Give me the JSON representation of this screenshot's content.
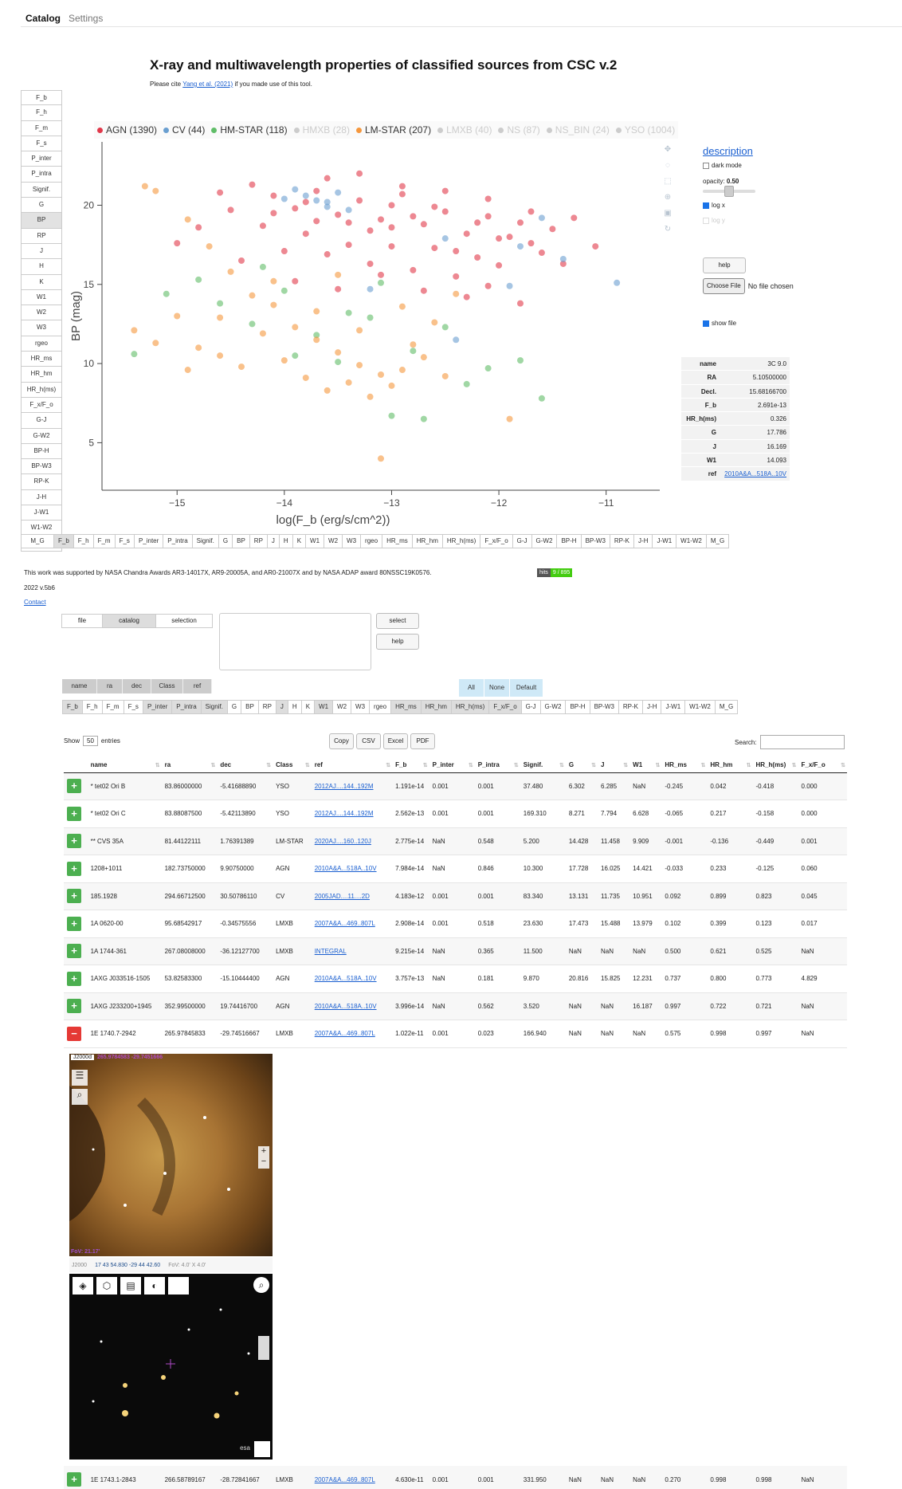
{
  "nav": {
    "tab_catalog": "Catalog",
    "tab_settings": "Settings"
  },
  "page": {
    "title": "X-ray and multiwavelength properties of classified sources from CSC v.2",
    "cite_pre": "Please cite ",
    "cite_link": "Yang et al. (2021)",
    "cite_post": " if you made use of this tool."
  },
  "y_buttons": [
    "F_b",
    "F_h",
    "F_m",
    "F_s",
    "P_inter",
    "P_intra",
    "Signif.",
    "G",
    "BP",
    "RP",
    "J",
    "H",
    "K",
    "W1",
    "W2",
    "W3",
    "rgeo",
    "HR_ms",
    "HR_hm",
    "HR_h(ms)",
    "F_x/F_o",
    "G-J",
    "G-W2",
    "BP-H",
    "BP-W3",
    "RP-K",
    "J-H",
    "J-W1",
    "W1-W2",
    "M_G"
  ],
  "x_buttons": [
    "F_b",
    "F_h",
    "F_m",
    "F_s",
    "P_inter",
    "P_intra",
    "Signif.",
    "G",
    "BP",
    "RP",
    "J",
    "H",
    "K",
    "W1",
    "W2",
    "W3",
    "rgeo",
    "HR_ms",
    "HR_hm",
    "HR_h(ms)",
    "F_x/F_o",
    "G-J",
    "G-W2",
    "BP-H",
    "BP-W3",
    "RP-K",
    "J-H",
    "J-W1",
    "W1-W2",
    "M_G"
  ],
  "legend": [
    {
      "label": "AGN (1390)",
      "color": "#e1384a",
      "on": true
    },
    {
      "label": "CV (44)",
      "color": "#6a9fd0",
      "on": true
    },
    {
      "label": "HM-STAR (118)",
      "color": "#60bd68",
      "on": true
    },
    {
      "label": "HMXB (28)",
      "color": "#cccccc",
      "on": false
    },
    {
      "label": "LM-STAR (207)",
      "color": "#f5973d",
      "on": true
    },
    {
      "label": "LMXB (40)",
      "color": "#cccccc",
      "on": false
    },
    {
      "label": "NS (87)",
      "color": "#cccccc",
      "on": false
    },
    {
      "label": "NS_BIN (24)",
      "color": "#cccccc",
      "on": false
    },
    {
      "label": "YSO (1004)",
      "color": "#cccccc",
      "on": false
    }
  ],
  "chart_data": {
    "type": "scatter",
    "xlabel": "log(F_b (erg/s/cm^2))",
    "ylabel": "BP (mag)",
    "xlim": [
      -15.7,
      -10.5
    ],
    "ylim": [
      2,
      24
    ],
    "xticks": [
      -15,
      -14,
      -13,
      -12,
      -11
    ],
    "yticks": [
      5,
      10,
      15,
      20
    ],
    "series": [
      {
        "name": "AGN",
        "color": "#e1384a",
        "points": [
          [
            -14.3,
            21.3
          ],
          [
            -14.1,
            20.6
          ],
          [
            -13.9,
            19.8
          ],
          [
            -13.7,
            20.9
          ],
          [
            -13.5,
            19.4
          ],
          [
            -13.3,
            20.3
          ],
          [
            -13.1,
            19.1
          ],
          [
            -12.9,
            20.7
          ],
          [
            -12.7,
            18.8
          ],
          [
            -12.5,
            19.6
          ],
          [
            -12.3,
            18.2
          ],
          [
            -12.1,
            19.3
          ],
          [
            -11.9,
            18.0
          ],
          [
            -11.7,
            17.6
          ],
          [
            -11.5,
            18.5
          ],
          [
            -13.8,
            18.2
          ],
          [
            -13.4,
            17.5
          ],
          [
            -13.0,
            18.6
          ],
          [
            -12.6,
            17.3
          ],
          [
            -12.2,
            16.7
          ],
          [
            -14.5,
            19.7
          ],
          [
            -14.2,
            18.7
          ],
          [
            -13.6,
            16.9
          ],
          [
            -13.2,
            16.3
          ],
          [
            -12.8,
            15.9
          ],
          [
            -12.4,
            15.5
          ],
          [
            -12.0,
            16.2
          ],
          [
            -11.6,
            17.0
          ],
          [
            -13.9,
            15.2
          ],
          [
            -13.5,
            14.7
          ],
          [
            -13.1,
            15.6
          ],
          [
            -12.7,
            14.6
          ],
          [
            -12.3,
            14.2
          ],
          [
            -11.8,
            13.8
          ],
          [
            -14.0,
            17.1
          ],
          [
            -14.6,
            20.8
          ],
          [
            -14.8,
            18.6
          ],
          [
            -15.0,
            17.6
          ],
          [
            -13.3,
            22.0
          ],
          [
            -13.6,
            21.7
          ],
          [
            -12.9,
            21.2
          ],
          [
            -12.5,
            20.9
          ],
          [
            -12.1,
            20.4
          ],
          [
            -11.7,
            19.6
          ],
          [
            -11.3,
            19.2
          ],
          [
            -11.1,
            17.4
          ],
          [
            -13.7,
            19.0
          ],
          [
            -13.4,
            18.9
          ],
          [
            -13.0,
            20.0
          ],
          [
            -12.6,
            19.9
          ],
          [
            -12.2,
            18.9
          ],
          [
            -11.8,
            18.9
          ],
          [
            -14.4,
            16.5
          ],
          [
            -13.0,
            17.4
          ],
          [
            -12.4,
            17.1
          ],
          [
            -12.1,
            14.9
          ],
          [
            -11.4,
            16.3
          ],
          [
            -14.1,
            19.5
          ],
          [
            -13.8,
            20.2
          ],
          [
            -13.2,
            18.4
          ],
          [
            -12.8,
            19.3
          ],
          [
            -12.0,
            17.9
          ]
        ]
      },
      {
        "name": "CV",
        "color": "#6a9fd0",
        "points": [
          [
            -13.9,
            21.0
          ],
          [
            -13.7,
            20.3
          ],
          [
            -13.5,
            20.8
          ],
          [
            -13.6,
            19.9
          ],
          [
            -13.8,
            20.6
          ],
          [
            -13.4,
            19.7
          ],
          [
            -13.6,
            20.2
          ],
          [
            -14.0,
            20.4
          ],
          [
            -12.5,
            17.9
          ],
          [
            -11.9,
            14.9
          ],
          [
            -11.4,
            16.6
          ],
          [
            -10.9,
            15.1
          ],
          [
            -11.8,
            17.4
          ],
          [
            -13.2,
            14.7
          ],
          [
            -12.4,
            11.5
          ],
          [
            -11.6,
            19.2
          ]
        ]
      },
      {
        "name": "HM-STAR",
        "color": "#60bd68",
        "points": [
          [
            -14.6,
            13.8
          ],
          [
            -14.3,
            12.5
          ],
          [
            -14.0,
            14.6
          ],
          [
            -13.7,
            11.8
          ],
          [
            -13.4,
            13.2
          ],
          [
            -13.1,
            15.1
          ],
          [
            -12.8,
            10.8
          ],
          [
            -12.5,
            12.3
          ],
          [
            -12.3,
            8.7
          ],
          [
            -12.1,
            9.7
          ],
          [
            -11.8,
            10.2
          ],
          [
            -11.6,
            7.8
          ],
          [
            -13.9,
            10.5
          ],
          [
            -14.2,
            16.1
          ],
          [
            -14.8,
            15.3
          ],
          [
            -15.1,
            14.4
          ],
          [
            -15.4,
            10.6
          ],
          [
            -13.0,
            6.7
          ],
          [
            -12.7,
            6.5
          ],
          [
            -13.5,
            10.1
          ],
          [
            -13.2,
            12.9
          ]
        ]
      },
      {
        "name": "LM-STAR",
        "color": "#f5973d",
        "points": [
          [
            -15.3,
            21.2
          ],
          [
            -15.2,
            20.9
          ],
          [
            -14.9,
            19.1
          ],
          [
            -14.7,
            17.4
          ],
          [
            -14.5,
            15.8
          ],
          [
            -14.3,
            14.3
          ],
          [
            -14.1,
            13.7
          ],
          [
            -13.9,
            12.3
          ],
          [
            -13.7,
            11.5
          ],
          [
            -13.5,
            10.7
          ],
          [
            -13.3,
            9.9
          ],
          [
            -13.1,
            9.3
          ],
          [
            -12.9,
            9.6
          ],
          [
            -12.7,
            10.4
          ],
          [
            -12.5,
            9.2
          ],
          [
            -15.4,
            12.1
          ],
          [
            -15.2,
            11.3
          ],
          [
            -15.0,
            13.0
          ],
          [
            -14.8,
            11.0
          ],
          [
            -14.6,
            10.5
          ],
          [
            -14.4,
            9.8
          ],
          [
            -14.2,
            11.9
          ],
          [
            -14.0,
            10.2
          ],
          [
            -13.8,
            9.1
          ],
          [
            -13.6,
            8.3
          ],
          [
            -13.4,
            8.8
          ],
          [
            -13.2,
            7.9
          ],
          [
            -13.0,
            8.6
          ],
          [
            -12.8,
            11.2
          ],
          [
            -12.6,
            12.6
          ],
          [
            -12.4,
            14.4
          ],
          [
            -13.1,
            4.0
          ],
          [
            -11.9,
            6.5
          ],
          [
            -14.6,
            12.9
          ],
          [
            -14.9,
            9.6
          ],
          [
            -13.7,
            13.3
          ],
          [
            -13.3,
            12.1
          ],
          [
            -12.9,
            13.6
          ],
          [
            -14.1,
            15.2
          ],
          [
            -13.5,
            15.6
          ]
        ]
      }
    ]
  },
  "side": {
    "description": "description",
    "dark_mode": "dark mode",
    "opacity_label": "opacity:",
    "opacity_value": "0.50",
    "opacity_level": 0.5,
    "log_x": "log x",
    "log_y": "log y",
    "help": "help",
    "choose_file": "Choose File",
    "no_file": "No file chosen",
    "show_file": "show file"
  },
  "info": [
    {
      "k": "name",
      "v": "3C 9.0"
    },
    {
      "k": "RA",
      "v": "5.10500000"
    },
    {
      "k": "Decl.",
      "v": "15.68166700"
    },
    {
      "k": "F_b",
      "v": "2.691e-13"
    },
    {
      "k": "HR_h(ms)",
      "v": "0.326"
    },
    {
      "k": "G",
      "v": "17.786"
    },
    {
      "k": "J",
      "v": "16.169"
    },
    {
      "k": "W1",
      "v": "14.093"
    },
    {
      "k": "ref",
      "v": "2010A&A...518A..10V"
    }
  ],
  "footer": {
    "support": "This work was supported by NASA Chandra Awards AR3-14017X, AR9-20005A, and AR0-21007X and by NASA ADAP award 80NSSC19K0576.",
    "hits_label": "hits",
    "hits_value": "9 / 895",
    "version": "2022 v.5b6",
    "contact": "Contact"
  },
  "query": {
    "seg_file": "file",
    "seg_catalog": "catalog",
    "seg_selection": "selection",
    "select": "select",
    "help": "help"
  },
  "groups": {
    "name": "name",
    "ra": "ra",
    "dec": "dec",
    "class": "Class",
    "ref": "ref",
    "all": "All",
    "none": "None",
    "default": "Default"
  },
  "tablectl": {
    "show": "Show",
    "entries_value": "50",
    "entries": "entries",
    "copy": "Copy",
    "csv": "CSV",
    "excel": "Excel",
    "pdf": "PDF",
    "search": "Search:"
  },
  "table": {
    "headers": [
      "",
      "name",
      "ra",
      "dec",
      "Class",
      "ref",
      "F_b",
      "P_inter",
      "P_intra",
      "Signif.",
      "G",
      "J",
      "W1",
      "HR_ms",
      "HR_hm",
      "HR_h(ms)",
      "F_x/F_o"
    ],
    "rows": [
      [
        "+",
        "* tet02 Ori B",
        "83.86000000",
        "-5.41688890",
        "YSO",
        "2012AJ....144..192M",
        "1.191e-14",
        "0.001",
        "0.001",
        "37.480",
        "6.302",
        "6.285",
        "NaN",
        "-0.245",
        "0.042",
        "-0.418",
        "0.000"
      ],
      [
        "+",
        "* tet02 Ori C",
        "83.88087500",
        "-5.42113890",
        "YSO",
        "2012AJ....144..192M",
        "2.562e-13",
        "0.001",
        "0.001",
        "169.310",
        "8.271",
        "7.794",
        "6.628",
        "-0.065",
        "0.217",
        "-0.158",
        "0.000"
      ],
      [
        "+",
        "** CVS 35A",
        "81.44122111",
        "1.76391389",
        "LM-STAR",
        "2020AJ....160..120J",
        "2.775e-14",
        "NaN",
        "0.548",
        "5.200",
        "14.428",
        "11.458",
        "9.909",
        "-0.001",
        "-0.136",
        "-0.449",
        "0.001"
      ],
      [
        "+",
        "1208+1011",
        "182.73750000",
        "9.90750000",
        "AGN",
        "2010A&A...518A..10V",
        "7.984e-14",
        "NaN",
        "0.846",
        "10.300",
        "17.728",
        "16.025",
        "14.421",
        "-0.033",
        "0.233",
        "-0.125",
        "0.060"
      ],
      [
        "+",
        "185.1928",
        "294.66712500",
        "30.50786110",
        "CV",
        "2005JAD....11....2D",
        "4.183e-12",
        "0.001",
        "0.001",
        "83.340",
        "13.131",
        "11.735",
        "10.951",
        "0.092",
        "0.899",
        "0.823",
        "0.045"
      ],
      [
        "+",
        "1A 0620-00",
        "95.68542917",
        "-0.34575556",
        "LMXB",
        "2007A&A...469..807L",
        "2.908e-14",
        "0.001",
        "0.518",
        "23.630",
        "17.473",
        "15.488",
        "13.979",
        "0.102",
        "0.399",
        "0.123",
        "0.017"
      ],
      [
        "+",
        "1A 1744-361",
        "267.08008000",
        "-36.12127700",
        "LMXB",
        "INTEGRAL",
        "9.215e-14",
        "NaN",
        "0.365",
        "11.500",
        "NaN",
        "NaN",
        "NaN",
        "0.500",
        "0.621",
        "0.525",
        "NaN"
      ],
      [
        "+",
        "1AXG J033516-1505",
        "53.82583300",
        "-15.10444400",
        "AGN",
        "2010A&A...518A..10V",
        "3.757e-13",
        "NaN",
        "0.181",
        "9.870",
        "20.816",
        "15.825",
        "12.231",
        "0.737",
        "0.800",
        "0.773",
        "4.829"
      ],
      [
        "+",
        "1AXG J233200+1945",
        "352.99500000",
        "19.74416700",
        "AGN",
        "2010A&A...518A..10V",
        "3.996e-14",
        "NaN",
        "0.562",
        "3.520",
        "NaN",
        "NaN",
        "16.187",
        "0.997",
        "0.722",
        "0.721",
        "NaN"
      ],
      [
        "-",
        "1E 1740.7-2942",
        "265.97845833",
        "-29.74516667",
        "LMXB",
        "2007A&A...469..807L",
        "1.022e-11",
        "0.001",
        "0.023",
        "166.940",
        "NaN",
        "NaN",
        "NaN",
        "0.575",
        "0.998",
        "0.997",
        "NaN"
      ]
    ],
    "last_row": [
      "+",
      "1E 1743.1-2843",
      "266.58789167",
      "-28.72841667",
      "LMXB",
      "2007A&A...469..807L",
      "4.630e-11",
      "0.001",
      "0.001",
      "331.950",
      "NaN",
      "NaN",
      "NaN",
      "0.270",
      "0.998",
      "0.998",
      "NaN"
    ]
  },
  "aladin": {
    "frame": "J2000d",
    "coords_overlay": "265.9784583 -29.7451666",
    "fov": "FoV: 21.17'",
    "frame2": "J2000",
    "coords": "17 43 54.830 -29 44 42.60",
    "fov2": "FoV: 4.0' X 4.0'",
    "esa": "esa"
  }
}
